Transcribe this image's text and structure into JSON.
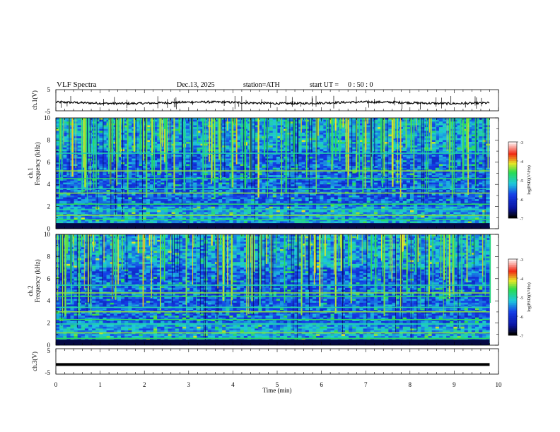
{
  "header": {
    "title": "VLF  Spectra",
    "date": "Dec.13, 2025",
    "station": "station=ATH",
    "start_label": "start  UT  =",
    "start_time": "0 : 50 : 0"
  },
  "colors": {
    "frame": "#000000",
    "spectrogram_low": "#0a2bd9",
    "spectrogram_mid": "#18d6c8",
    "spectrogram_high": "#f01010"
  },
  "chart_data": [
    {
      "type": "line",
      "ylabel": "ch.1(V)",
      "ylim": [
        -5,
        5
      ],
      "yticks": [
        "5",
        "-5"
      ],
      "xlim": [
        0,
        10
      ],
      "series": [
        {
          "level": -1.2,
          "spread": 1.0
        }
      ]
    },
    {
      "type": "heatmap",
      "ylabel_top": "ch.1",
      "ylabel": "Frequency  (kHz)",
      "xlim": [
        0,
        9.8
      ],
      "ylim": [
        0,
        10
      ],
      "yticks": [
        "0",
        "2",
        "4",
        "6",
        "8",
        "10"
      ],
      "colorbar": {
        "label": "log(PSD)(V²/Hz)",
        "range": [
          -7,
          -3
        ],
        "ticks": [
          "-3",
          "-4",
          "-5",
          "-6",
          "-7"
        ]
      },
      "bands_khz": [
        0.2,
        0.8,
        1.2,
        1.7,
        2.2,
        3.2,
        3.6,
        4.5,
        5.2,
        6.8
      ]
    },
    {
      "type": "heatmap",
      "ylabel_top": "ch.2",
      "ylabel": "Frequency  (kHz)",
      "xlim": [
        0,
        9.8
      ],
      "ylim": [
        0,
        10
      ],
      "yticks": [
        "0",
        "2",
        "4",
        "6",
        "8",
        "10"
      ],
      "colorbar": {
        "label": "log(PSD)(V²/Hz)",
        "range": [
          -7,
          -3
        ],
        "ticks": [
          "-3",
          "-4",
          "-5",
          "-6",
          "-7"
        ]
      },
      "bands_khz": [
        0.2,
        0.6,
        1.1,
        1.9,
        2.3,
        3.0,
        3.4,
        4.4,
        4.7,
        5.4
      ]
    },
    {
      "type": "line",
      "ylabel": "ch.3(V)",
      "ylim": [
        -5,
        5
      ],
      "yticks": [
        "5",
        "-5"
      ],
      "xlim": [
        0,
        10
      ],
      "xticks": [
        "0",
        "1",
        "2",
        "3",
        "4",
        "5",
        "6",
        "7",
        "8",
        "9",
        "10"
      ],
      "xlabel": "Time  (min)",
      "series": [
        {
          "level": -1.2,
          "spread": 0.0
        }
      ]
    }
  ]
}
